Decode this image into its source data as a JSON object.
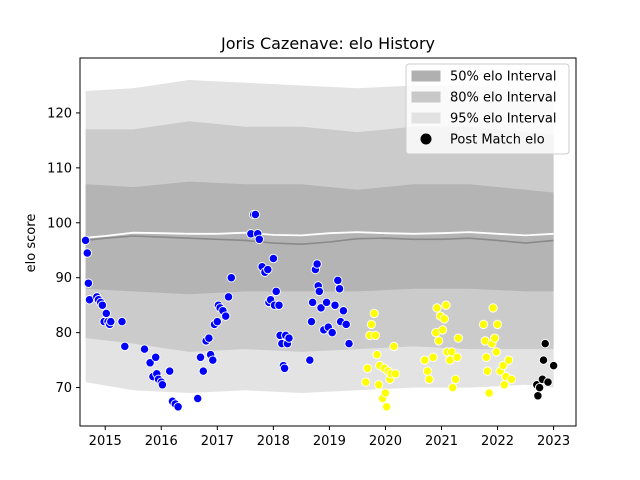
{
  "chart_data": {
    "type": "scatter",
    "title": "Joris Cazenave: elo History",
    "xlabel": "",
    "ylabel": "elo score",
    "xlim": [
      2014.55,
      2023.4
    ],
    "ylim": [
      63,
      130
    ],
    "xticks": [
      {
        "value": 2015,
        "label": "2015"
      },
      {
        "value": 2016,
        "label": "2016"
      },
      {
        "value": 2017,
        "label": "2017"
      },
      {
        "value": 2018,
        "label": "2018"
      },
      {
        "value": 2019,
        "label": "2019"
      },
      {
        "value": 2020,
        "label": "2020"
      },
      {
        "value": 2021,
        "label": "2021"
      },
      {
        "value": 2022,
        "label": "2022"
      },
      {
        "value": 2023,
        "label": "2023"
      }
    ],
    "yticks": [
      {
        "value": 70,
        "label": "70"
      },
      {
        "value": 80,
        "label": "80"
      },
      {
        "value": 90,
        "label": "90"
      },
      {
        "value": 100,
        "label": "100"
      },
      {
        "value": 110,
        "label": "110"
      },
      {
        "value": 120,
        "label": "120"
      }
    ],
    "legend": {
      "placement": "top-right",
      "items": [
        {
          "label": "50% elo Interval",
          "kind": "patch",
          "color": "#b0b0b0"
        },
        {
          "label": "80% elo Interval",
          "kind": "patch",
          "color": "#c8c8c8"
        },
        {
          "label": "95% elo Interval",
          "kind": "patch",
          "color": "#e2e2e2"
        },
        {
          "label": "Post Match elo",
          "kind": "marker",
          "color": "#000000"
        }
      ]
    },
    "bands": [
      {
        "name": "95% elo Interval",
        "color": "#e3e3e3",
        "x": [
          2014.65,
          2015.5,
          2016.5,
          2017.5,
          2018.5,
          2019.5,
          2020.5,
          2021.5,
          2022.5,
          2023.0
        ],
        "upper": [
          124,
          124.5,
          126,
          125.5,
          125,
          124.5,
          125,
          125,
          124,
          123.5
        ],
        "lower": [
          71,
          69.5,
          69,
          69.5,
          69,
          69.5,
          70,
          70,
          70.5,
          70
        ]
      },
      {
        "name": "80% elo Interval",
        "color": "#cbcbcb",
        "x": [
          2014.65,
          2015.5,
          2016.5,
          2017.5,
          2018.5,
          2019.5,
          2020.5,
          2021.5,
          2022.5,
          2023.0
        ],
        "upper": [
          117,
          117,
          118.5,
          117.5,
          117.5,
          116.5,
          117.5,
          117.5,
          116.5,
          116
        ],
        "lower": [
          79,
          78,
          76.5,
          77,
          76.5,
          77,
          77.5,
          77,
          77,
          77
        ]
      },
      {
        "name": "50% elo Interval",
        "color": "#b4b4b4",
        "x": [
          2014.65,
          2015.5,
          2016.5,
          2017.5,
          2018.5,
          2019.5,
          2020.5,
          2021.5,
          2022.5,
          2023.0
        ],
        "upper": [
          107,
          106.5,
          107.5,
          107,
          107,
          106,
          107,
          107,
          106,
          105.5
        ],
        "lower": [
          88,
          87.5,
          87,
          87.5,
          87.5,
          87.5,
          88,
          88,
          87.5,
          87.5
        ]
      }
    ],
    "mean_line": {
      "color": "#8a8a8a",
      "x": [
        2014.65,
        2015.0,
        2015.5,
        2016.0,
        2016.5,
        2017.0,
        2017.5,
        2018.0,
        2018.5,
        2019.0,
        2019.5,
        2020.0,
        2020.5,
        2021.0,
        2021.5,
        2022.0,
        2022.5,
        2023.0
      ],
      "y": [
        96.8,
        97.2,
        97.6,
        97.4,
        97.2,
        97.0,
        96.8,
        96.3,
        96.1,
        96.5,
        97.1,
        97.2,
        97.0,
        97.0,
        97.2,
        96.8,
        96.3,
        96.8
      ]
    },
    "median_line": {
      "color": "#ffffff",
      "x": [
        2014.65,
        2015.0,
        2015.5,
        2016.0,
        2016.5,
        2017.0,
        2017.5,
        2018.0,
        2018.5,
        2019.0,
        2019.5,
        2020.0,
        2020.5,
        2021.0,
        2021.5,
        2022.0,
        2022.5,
        2023.0
      ],
      "y": [
        97.3,
        97.6,
        98.2,
        98.1,
        98.0,
        98.0,
        98.2,
        97.8,
        97.7,
        98.1,
        98.3,
        98.1,
        98.0,
        98.1,
        98.3,
        98.0,
        97.7,
        98.0
      ]
    },
    "series": [
      {
        "color": "#0000ff",
        "points": [
          [
            2014.65,
            96.8
          ],
          [
            2014.68,
            94.5
          ],
          [
            2014.7,
            89
          ],
          [
            2014.72,
            86
          ],
          [
            2014.85,
            86.5
          ],
          [
            2014.88,
            86
          ],
          [
            2014.92,
            85.5
          ],
          [
            2014.95,
            85
          ],
          [
            2014.98,
            82
          ],
          [
            2015.02,
            83.5
          ],
          [
            2015.05,
            82
          ],
          [
            2015.08,
            81.5
          ],
          [
            2015.1,
            82
          ],
          [
            2015.3,
            82
          ],
          [
            2015.35,
            77.5
          ],
          [
            2015.7,
            77
          ],
          [
            2015.8,
            74.5
          ],
          [
            2015.85,
            72
          ],
          [
            2015.9,
            75.5
          ],
          [
            2015.92,
            72.5
          ],
          [
            2015.95,
            71.5
          ],
          [
            2016.0,
            71
          ],
          [
            2016.02,
            70.5
          ],
          [
            2016.15,
            73
          ],
          [
            2016.2,
            67.5
          ],
          [
            2016.25,
            67
          ],
          [
            2016.3,
            66.5
          ],
          [
            2016.65,
            68
          ],
          [
            2016.7,
            75.5
          ],
          [
            2016.75,
            73
          ],
          [
            2016.8,
            78.5
          ],
          [
            2016.85,
            79
          ],
          [
            2016.88,
            76
          ],
          [
            2016.92,
            75
          ],
          [
            2016.95,
            81.5
          ],
          [
            2017.0,
            82
          ],
          [
            2017.02,
            85
          ],
          [
            2017.05,
            84.5
          ],
          [
            2017.1,
            84
          ],
          [
            2017.15,
            83
          ],
          [
            2017.2,
            86.5
          ],
          [
            2017.25,
            90
          ],
          [
            2017.6,
            98
          ],
          [
            2017.65,
            101.5
          ],
          [
            2017.68,
            101.5
          ],
          [
            2017.72,
            98
          ],
          [
            2017.75,
            97
          ],
          [
            2017.8,
            92
          ],
          [
            2017.85,
            91
          ],
          [
            2017.9,
            91.5
          ],
          [
            2017.92,
            85.5
          ],
          [
            2017.95,
            86
          ],
          [
            2018.0,
            93.5
          ],
          [
            2018.02,
            85
          ],
          [
            2018.05,
            87.5
          ],
          [
            2018.1,
            85
          ],
          [
            2018.12,
            79.5
          ],
          [
            2018.15,
            78
          ],
          [
            2018.18,
            74
          ],
          [
            2018.2,
            73.5
          ],
          [
            2018.22,
            79.5
          ],
          [
            2018.25,
            78
          ],
          [
            2018.28,
            79
          ],
          [
            2018.65,
            75
          ],
          [
            2018.68,
            82
          ],
          [
            2018.7,
            85.5
          ],
          [
            2018.75,
            91.5
          ],
          [
            2018.78,
            92.5
          ],
          [
            2018.8,
            88.5
          ],
          [
            2018.82,
            87.5
          ],
          [
            2018.85,
            84.5
          ],
          [
            2018.9,
            80.5
          ],
          [
            2018.95,
            85.5
          ],
          [
            2018.98,
            81
          ],
          [
            2019.05,
            80
          ],
          [
            2019.1,
            85
          ],
          [
            2019.15,
            89.5
          ],
          [
            2019.18,
            88
          ],
          [
            2019.2,
            82
          ],
          [
            2019.25,
            84
          ],
          [
            2019.3,
            81.5
          ],
          [
            2019.35,
            78
          ]
        ]
      },
      {
        "color": "#ffff00",
        "points": [
          [
            2019.65,
            71
          ],
          [
            2019.68,
            73.5
          ],
          [
            2019.72,
            79.5
          ],
          [
            2019.75,
            81.5
          ],
          [
            2019.8,
            83.5
          ],
          [
            2019.82,
            79.5
          ],
          [
            2019.85,
            76
          ],
          [
            2019.88,
            70.5
          ],
          [
            2019.9,
            74
          ],
          [
            2019.95,
            68
          ],
          [
            2019.98,
            73.5
          ],
          [
            2020.0,
            69
          ],
          [
            2020.02,
            66.5
          ],
          [
            2020.05,
            73
          ],
          [
            2020.08,
            71.5
          ],
          [
            2020.1,
            72.5
          ],
          [
            2020.15,
            77.5
          ],
          [
            2020.18,
            72.5
          ],
          [
            2020.7,
            75
          ],
          [
            2020.75,
            73
          ],
          [
            2020.78,
            71.5
          ],
          [
            2020.85,
            75.5
          ],
          [
            2020.9,
            80
          ],
          [
            2020.92,
            84.5
          ],
          [
            2020.95,
            78.5
          ],
          [
            2020.98,
            83
          ],
          [
            2021.02,
            80.5
          ],
          [
            2021.05,
            82.5
          ],
          [
            2021.08,
            85
          ],
          [
            2021.1,
            76.5
          ],
          [
            2021.15,
            75
          ],
          [
            2021.18,
            76.5
          ],
          [
            2021.2,
            70
          ],
          [
            2021.25,
            71.5
          ],
          [
            2021.28,
            75.5
          ],
          [
            2021.3,
            79
          ],
          [
            2021.75,
            81.5
          ],
          [
            2021.78,
            78.5
          ],
          [
            2021.8,
            75.5
          ],
          [
            2021.82,
            73
          ],
          [
            2021.85,
            69
          ],
          [
            2021.9,
            78
          ],
          [
            2021.92,
            84.5
          ],
          [
            2021.95,
            79
          ],
          [
            2021.98,
            76.5
          ],
          [
            2022.0,
            81.5
          ],
          [
            2022.05,
            73
          ],
          [
            2022.1,
            74
          ],
          [
            2022.12,
            70.5
          ],
          [
            2022.15,
            72
          ],
          [
            2022.2,
            75
          ],
          [
            2022.25,
            71.5
          ]
        ]
      },
      {
        "color": "#000000",
        "points": [
          [
            2022.7,
            70.5
          ],
          [
            2022.72,
            68.5
          ],
          [
            2022.75,
            70
          ],
          [
            2022.8,
            71.5
          ],
          [
            2022.82,
            75
          ],
          [
            2022.85,
            78
          ],
          [
            2022.9,
            71
          ],
          [
            2023.0,
            74
          ]
        ]
      }
    ]
  }
}
